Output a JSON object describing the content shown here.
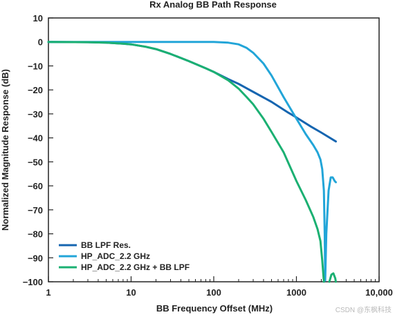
{
  "chart_data": {
    "type": "line",
    "title": "Rx Analog BB Path Response",
    "xlabel": "BB Frequency Offset (MHz)",
    "ylabel": "Normalized Magnitude Response (dB)",
    "x_scale": "log",
    "xlim": [
      1,
      10000
    ],
    "ylim": [
      -100,
      10
    ],
    "x_ticks": [
      1,
      10,
      100,
      1000,
      10000
    ],
    "x_tick_labels": [
      "1",
      "10",
      "100",
      "1000",
      "10,000"
    ],
    "y_ticks": [
      10,
      0,
      -10,
      -20,
      -30,
      -40,
      -50,
      -60,
      -70,
      -80,
      -90,
      -100
    ],
    "y_tick_labels": [
      "10",
      "0",
      "−10",
      "−20",
      "−30",
      "−40",
      "−50",
      "−60",
      "−70",
      "−80",
      "−90",
      "−100"
    ],
    "grid": false,
    "legend_position": "bottom-left",
    "series": [
      {
        "name": "BB LPF Res.",
        "color": "#1565b0",
        "x": [
          1,
          3,
          5,
          8,
          10,
          15,
          20,
          30,
          50,
          80,
          100,
          150,
          200,
          300,
          500,
          800,
          1000,
          1500,
          2000,
          3000
        ],
        "y": [
          0,
          -0.1,
          -0.3,
          -0.7,
          -1.0,
          -2.0,
          -3.0,
          -5.0,
          -8.0,
          -11.0,
          -12.5,
          -15.5,
          -17.5,
          -20.8,
          -25.0,
          -29.5,
          -31.5,
          -35.3,
          -37.8,
          -41.5
        ]
      },
      {
        "name": "HP_ADC_2.2 GHz",
        "color": "#22a5d8",
        "x": [
          1,
          10,
          50,
          100,
          150,
          200,
          250,
          300,
          400,
          500,
          700,
          1000,
          1300,
          1600,
          1800,
          1950,
          2050,
          2150,
          2200,
          2230,
          2300,
          2450,
          2600,
          2750,
          2900,
          3000
        ],
        "y": [
          0,
          0,
          0,
          0,
          -0.3,
          -1.0,
          -2.5,
          -4.5,
          -9.0,
          -14.0,
          -23.0,
          -32.0,
          -38.5,
          -43.0,
          -46.0,
          -49.0,
          -53.0,
          -62.0,
          -80.0,
          -99.5,
          -80.0,
          -62.0,
          -56.5,
          -56.5,
          -58.0,
          -58.5
        ]
      },
      {
        "name": "HP_ADC_2.2 GHz + BB LPF",
        "color": "#1bb072",
        "x": [
          1,
          3,
          5,
          8,
          10,
          15,
          20,
          30,
          50,
          80,
          100,
          150,
          200,
          250,
          300,
          400,
          500,
          700,
          1000,
          1300,
          1600,
          1800,
          1950,
          2050,
          2150
        ],
        "y": [
          0,
          -0.1,
          -0.3,
          -0.7,
          -1.0,
          -2.0,
          -3.0,
          -5.0,
          -8.0,
          -11.0,
          -12.5,
          -16.0,
          -19.5,
          -23.0,
          -26.0,
          -32.0,
          -37.5,
          -46.0,
          -58.0,
          -66.0,
          -73.0,
          -78.0,
          -83.0,
          -91.0,
          -100.0
        ]
      },
      {
        "name": "",
        "color": "#1bb072",
        "x": [
          2500,
          2650,
          2800,
          2950,
          3000
        ],
        "y": [
          -100,
          -97.0,
          -96.5,
          -98.5,
          -100
        ]
      }
    ]
  },
  "watermark": "CSDN @东枫科技"
}
